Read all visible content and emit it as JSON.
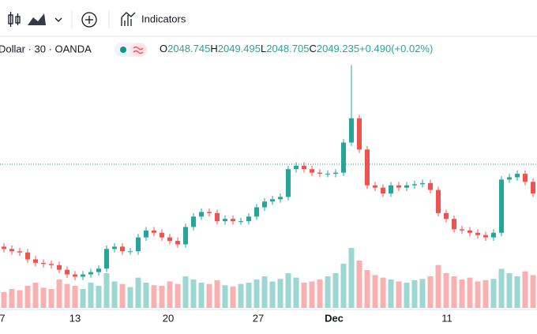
{
  "toolbar": {
    "indicators": "Indicators"
  },
  "chart_data": {
    "type": "candlestick",
    "symbol": "Dollar · 30 · OANDA",
    "ohlc": [
      {
        "label": "O",
        "value": 2048.745
      },
      {
        "label": "H",
        "value": 2049.495
      },
      {
        "label": "L",
        "value": 2048.705
      },
      {
        "label": "C",
        "value": 2049.235
      }
    ],
    "change": {
      "value": 0.49,
      "label": "+0.490"
    },
    "change_pct": {
      "value": 0.02,
      "label": "(+0.02%)"
    },
    "up_color": "#26a69a",
    "down_color": "#ef5350",
    "open": [
      1978,
      1976,
      1974,
      1973,
      1967,
      1964,
      1963,
      1962,
      1958,
      1954,
      1952,
      1954,
      1956,
      1959,
      1976,
      1978,
      1974,
      1974,
      1986,
      1992,
      1990,
      1986,
      1983,
      1980,
      1995,
      2004,
      2008,
      2007,
      2000,
      2002,
      2000,
      2000,
      2004,
      2012,
      2017,
      2019,
      2021,
      2045,
      2048,
      2045,
      2042,
      2041,
      2041,
      2042,
      2068,
      2089,
      2062,
      2031,
      2029,
      2024,
      2031,
      2029,
      2031,
      2032,
      2033,
      2027,
      2007,
      2002,
      1993,
      1992,
      1990,
      1988,
      1986,
      1990,
      2036,
      2038,
      2041,
      2034
    ],
    "high": [
      1981,
      1979,
      1977,
      1976,
      1970,
      1967,
      1966,
      1965,
      1961,
      1957,
      1957,
      1959,
      1962,
      1979,
      1981,
      1981,
      1977,
      1989,
      1995,
      1995,
      1993,
      1989,
      1986,
      1998,
      2007,
      2011,
      2011,
      2010,
      2005,
      2005,
      2003,
      2007,
      2015,
      2020,
      2022,
      2024,
      2048,
      2051,
      2051,
      2048,
      2045,
      2044,
      2045,
      2071,
      2135,
      2092,
      2065,
      2034,
      2032,
      2034,
      2034,
      2034,
      2035,
      2036,
      2036,
      2030,
      2010,
      2005,
      1996,
      1995,
      1993,
      1991,
      1993,
      2039,
      2041,
      2044,
      2044,
      2037
    ],
    "low": [
      1973,
      1971,
      1970,
      1964,
      1961,
      1960,
      1959,
      1955,
      1951,
      1949,
      1949,
      1951,
      1953,
      1956,
      1973,
      1971,
      1971,
      1971,
      1983,
      1987,
      1983,
      1980,
      1977,
      1977,
      1992,
      2001,
      2004,
      1997,
      1997,
      1997,
      1997,
      1997,
      2001,
      2009,
      2014,
      2016,
      2018,
      2042,
      2042,
      2039,
      2038,
      2038,
      2038,
      2039,
      2065,
      2059,
      2028,
      2026,
      2021,
      2021,
      2026,
      2026,
      2028,
      2029,
      2024,
      2004,
      1999,
      1990,
      1989,
      1987,
      1985,
      1983,
      1983,
      1987,
      2033,
      2035,
      2031,
      2021
    ],
    "close": [
      1976,
      1974,
      1973,
      1967,
      1964,
      1963,
      1962,
      1958,
      1954,
      1952,
      1954,
      1956,
      1959,
      1976,
      1978,
      1974,
      1974,
      1986,
      1992,
      1990,
      1986,
      1983,
      1980,
      1995,
      2004,
      2008,
      2007,
      2000,
      2002,
      2000,
      2000,
      2004,
      2012,
      2017,
      2019,
      2021,
      2045,
      2048,
      2045,
      2042,
      2041,
      2041,
      2042,
      2068,
      2089,
      2062,
      2031,
      2029,
      2024,
      2031,
      2029,
      2031,
      2032,
      2033,
      2027,
      2007,
      2002,
      1993,
      1992,
      1990,
      1988,
      1986,
      1990,
      2036,
      2038,
      2041,
      2034,
      2024
    ],
    "volume": [
      25,
      30,
      28,
      35,
      40,
      32,
      30,
      45,
      38,
      35,
      30,
      40,
      35,
      55,
      42,
      38,
      33,
      48,
      40,
      36,
      35,
      42,
      38,
      50,
      45,
      40,
      38,
      44,
      36,
      34,
      38,
      40,
      45,
      50,
      42,
      46,
      55,
      48,
      40,
      42,
      45,
      50,
      55,
      70,
      95,
      75,
      60,
      52,
      48,
      45,
      42,
      40,
      44,
      46,
      50,
      68,
      55,
      50,
      45,
      48,
      42,
      44,
      46,
      62,
      55,
      50,
      58,
      52
    ],
    "volume_lim": [
      0,
      100
    ],
    "xlim": [
      0,
      68
    ],
    "xticks": [
      {
        "value": 0.3,
        "label": "7"
      },
      {
        "value": 9.5,
        "label": "13"
      },
      {
        "value": 21.3,
        "label": "20"
      },
      {
        "value": 32.7,
        "label": "27"
      },
      {
        "value": 42.3,
        "label": "Dec"
      },
      {
        "value": 56.6,
        "label": "11"
      }
    ],
    "ylim": [
      1925,
      2138
    ]
  }
}
